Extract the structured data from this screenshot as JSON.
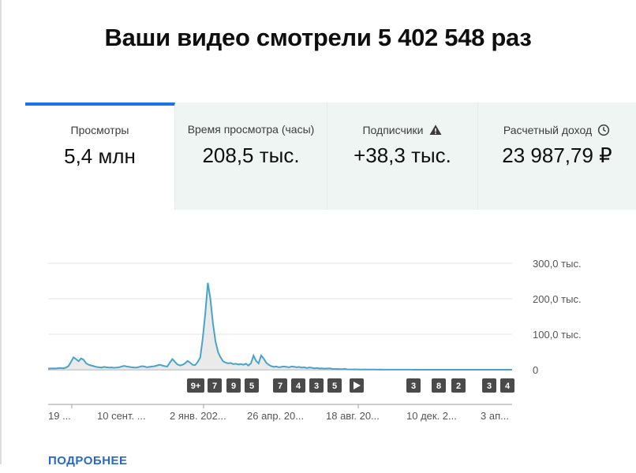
{
  "headline": "Ваши видео смотрели 5 402 548 раз",
  "tabs": [
    {
      "label": "Просмотры",
      "value": "5,4 млн",
      "active": true,
      "icon": null
    },
    {
      "label": "Время просмотра (часы)",
      "value": "208,5 тыс.",
      "active": false,
      "icon": null
    },
    {
      "label": "Подписчики",
      "value": "+38,3 тыс.",
      "active": false,
      "icon": "warning-icon"
    },
    {
      "label": "Расчетный доход",
      "value": "23 987,79 ₽",
      "active": false,
      "icon": "clock-icon"
    }
  ],
  "colors": {
    "accent": "#1a73e8",
    "line": "#4aa3c8",
    "tab_bg": "#eef5f3",
    "link": "#2a68c8"
  },
  "more_link": "ПОДРОБНЕЕ",
  "chart_data": {
    "type": "area",
    "y_ticks": [
      "300,0 тыс.",
      "200,0 тыс.",
      "100,0 тыс.",
      "0"
    ],
    "ylim": [
      0,
      300000
    ],
    "x_labels": [
      "19 ...",
      "10 сент. ...",
      "2 янв. 202...",
      "26 апр. 20...",
      "18 авг. 20...",
      "10 дек. 2...",
      "3 ап..."
    ],
    "values": [
      3000,
      3500,
      4000,
      3500,
      4500,
      5000,
      4000,
      6000,
      10000,
      22000,
      35000,
      30000,
      24000,
      32000,
      28000,
      18000,
      14000,
      12000,
      10000,
      8000,
      7000,
      6000,
      8000,
      7000,
      6000,
      6500,
      5500,
      6000,
      7000,
      9000,
      11000,
      9000,
      8000,
      7000,
      6000,
      6500,
      8000,
      10000,
      9000,
      7000,
      8000,
      9000,
      10000,
      12000,
      14000,
      12000,
      10000,
      9000,
      20000,
      30000,
      22000,
      15000,
      12000,
      14000,
      18000,
      25000,
      20000,
      14000,
      13000,
      22000,
      35000,
      90000,
      160000,
      245000,
      200000,
      130000,
      80000,
      50000,
      35000,
      24000,
      20000,
      18000,
      19000,
      16000,
      17000,
      15000,
      16000,
      14000,
      17000,
      12000,
      18000,
      40000,
      25000,
      18000,
      40000,
      32000,
      20000,
      14000,
      10000,
      8000,
      9000,
      7000,
      8000,
      9000,
      8000,
      7000,
      9000,
      8500,
      7000,
      8000,
      6000,
      7000,
      5000,
      6500,
      5500,
      4000,
      5000,
      3500,
      4000,
      3000,
      3500,
      4000,
      2500,
      2000,
      2500,
      1800,
      1500,
      2500,
      1200,
      1000,
      800,
      1200,
      900,
      700,
      600,
      800,
      500,
      600,
      400,
      500,
      300,
      400,
      300,
      250,
      300,
      200,
      250,
      200,
      180,
      150,
      200,
      150,
      120,
      150,
      100,
      120,
      100,
      80,
      100,
      80,
      60,
      80,
      60,
      50,
      60,
      50,
      40,
      50,
      40,
      30,
      40,
      30,
      30,
      20,
      30,
      20,
      20,
      20,
      15,
      15,
      10,
      10,
      10,
      10,
      10,
      10,
      5,
      5,
      5,
      5,
      5,
      5,
      5,
      5
    ],
    "markers": [
      "9+",
      "7",
      "9",
      "5",
      "7",
      "4",
      "3",
      "5",
      "play-icon",
      "3",
      "8",
      "2",
      "3",
      "4"
    ],
    "grid": true,
    "legend": "none"
  }
}
